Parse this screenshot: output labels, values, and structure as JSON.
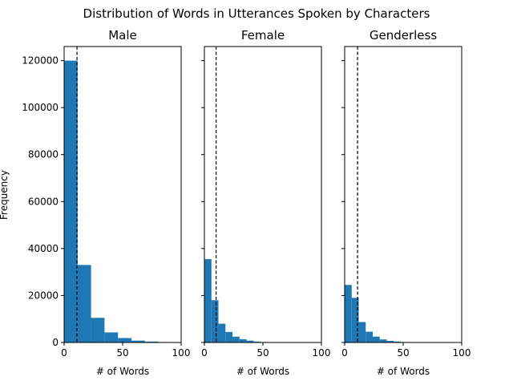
{
  "chart_data": {
    "type": "histogram",
    "title": "Distribution of Words in Utterances Spoken by Characters",
    "ylabel": "Frequency",
    "ylim": [
      0,
      126000
    ],
    "yticks": [
      0,
      20000,
      40000,
      60000,
      80000,
      100000,
      120000
    ],
    "sharey": true,
    "bar_color": "#1f77b4",
    "mean_line_style": "dashed",
    "panels": [
      {
        "title": "Male",
        "xlabel": "# of Words",
        "xlim": [
          0,
          100
        ],
        "xticks": [
          0,
          50,
          100
        ],
        "bins": [
          [
            0,
            11.5
          ],
          [
            11.5,
            23
          ],
          [
            23,
            34.5
          ],
          [
            34.5,
            46
          ],
          [
            46,
            57.5
          ],
          [
            57.5,
            69
          ],
          [
            69,
            80.5
          ],
          [
            80.5,
            92
          ]
        ],
        "counts": [
          120000,
          33000,
          10500,
          4300,
          1900,
          800,
          400,
          200
        ],
        "mean": 11
      },
      {
        "title": "Female",
        "xlabel": "# of Words",
        "xlim": [
          0,
          100
        ],
        "xticks": [
          0,
          50,
          100
        ],
        "bins": [
          [
            0,
            6
          ],
          [
            6,
            12
          ],
          [
            12,
            18
          ],
          [
            18,
            24
          ],
          [
            24,
            30
          ],
          [
            30,
            36
          ],
          [
            36,
            42
          ],
          [
            42,
            48
          ],
          [
            48,
            54
          ]
        ],
        "counts": [
          35500,
          18000,
          8000,
          4500,
          2500,
          1400,
          800,
          400,
          200
        ],
        "mean": 10
      },
      {
        "title": "Genderless",
        "xlabel": "# of Words",
        "xlim": [
          0,
          100
        ],
        "xticks": [
          0,
          50,
          100
        ],
        "bins": [
          [
            0,
            6
          ],
          [
            6,
            12
          ],
          [
            12,
            18
          ],
          [
            18,
            24
          ],
          [
            24,
            30
          ],
          [
            30,
            36
          ],
          [
            36,
            42
          ],
          [
            42,
            48
          ],
          [
            48,
            54
          ]
        ],
        "counts": [
          24500,
          19000,
          8700,
          4600,
          2500,
          1300,
          700,
          400,
          200
        ],
        "mean": 11
      }
    ]
  }
}
